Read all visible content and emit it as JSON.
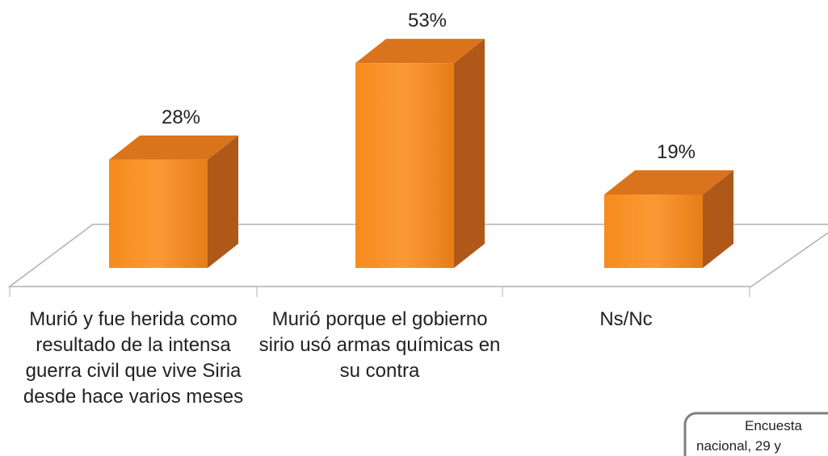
{
  "chart_data": {
    "type": "bar3d",
    "categories": [
      "Murió y fue herida como resultado de la intensa guerra civil que vive Siria desde hace  varios meses",
      "Murió porque el gobierno sirio usó armas químicas en su contra",
      "Ns/Nc"
    ],
    "values": [
      28,
      53,
      19
    ],
    "value_labels": [
      "28%",
      "53%",
      "19%"
    ],
    "color": "#f7922a",
    "annotation": [
      "Encuesta",
      "nacional, 29 y"
    ]
  }
}
